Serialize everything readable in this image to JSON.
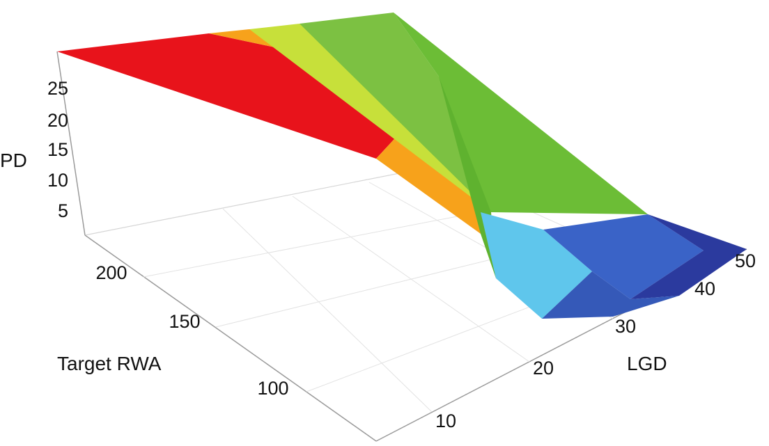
{
  "chart_data": {
    "type": "surface3d",
    "title": "",
    "zlabel": "PD",
    "xlabel": "LGD",
    "ylabel": "Target RWA",
    "z_ticks": [
      "5",
      "10",
      "15",
      "20",
      "25"
    ],
    "x_ticks": [
      "10",
      "20",
      "30",
      "40",
      "50"
    ],
    "y_ticks": [
      "100",
      "150",
      "200"
    ],
    "zlim": [
      1,
      29
    ],
    "colormap": [
      "#2b3a9e",
      "#3a63c7",
      "#5fc6ec",
      "#7cc142",
      "#6cbd36",
      "#c7e03a",
      "#f7a21b",
      "#e8131b"
    ],
    "slices": [
      {
        "lgd": 10,
        "pd_high_rwa": 29,
        "pd_low_rwa": 14
      },
      {
        "lgd": 20,
        "pd_high_rwa": 27,
        "pd_low_rwa": 4
      },
      {
        "lgd": 30,
        "pd_high_rwa": 18,
        "pd_low_rwa": 2
      },
      {
        "lgd": 40,
        "pd_high_rwa": 8,
        "pd_low_rwa": 1.5
      },
      {
        "lgd": 50,
        "pd_high_rwa": 3,
        "pd_low_rwa": 2
      }
    ]
  }
}
